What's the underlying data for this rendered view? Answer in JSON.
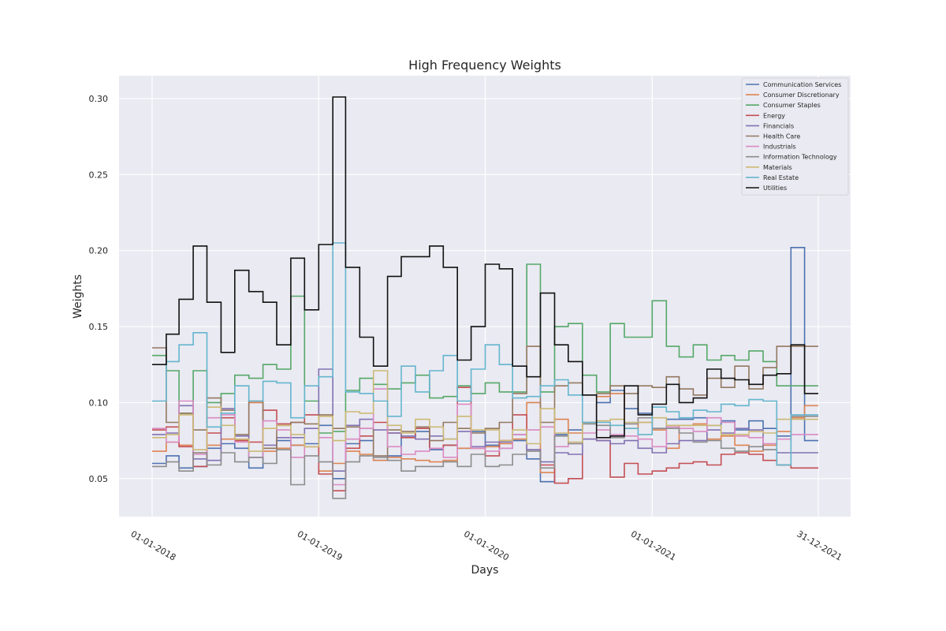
{
  "chart_data": {
    "type": "line",
    "step": true,
    "title": "High Frequency Weights",
    "xlabel": "Days",
    "ylabel": "Weights",
    "x_ticks": [
      "01-01-2018",
      "01-01-2019",
      "01-01-2020",
      "01-01-2021",
      "31-12-2021"
    ],
    "x_range": [
      "2018-01-01",
      "2021-12-31"
    ],
    "ylim": [
      0.025,
      0.315
    ],
    "y_ticks": [
      0.05,
      0.1,
      0.15,
      0.2,
      0.25,
      0.3
    ],
    "y_tick_labels": [
      "0.05",
      "0.10",
      "0.15",
      "0.20",
      "0.25",
      "0.30"
    ],
    "grid": true,
    "legend_position": "top-right",
    "x": [
      "2018-01-01",
      "2018-02-01",
      "2018-03-01",
      "2018-04-01",
      "2018-05-01",
      "2018-06-01",
      "2018-07-01",
      "2018-08-01",
      "2018-09-01",
      "2018-10-01",
      "2018-11-01",
      "2018-12-01",
      "2019-01-01",
      "2019-02-01",
      "2019-03-01",
      "2019-04-01",
      "2019-05-01",
      "2019-06-01",
      "2019-07-01",
      "2019-08-01",
      "2019-09-01",
      "2019-10-01",
      "2019-11-01",
      "2019-12-01",
      "2020-01-01",
      "2020-02-01",
      "2020-03-01",
      "2020-04-01",
      "2020-05-01",
      "2020-06-01",
      "2020-07-01",
      "2020-08-01",
      "2020-09-01",
      "2020-10-01",
      "2020-11-01",
      "2020-12-01",
      "2021-01-01",
      "2021-02-01",
      "2021-03-01",
      "2021-04-01",
      "2021-05-01",
      "2021-06-01",
      "2021-07-01",
      "2021-08-01",
      "2021-09-01",
      "2021-10-01",
      "2021-11-01",
      "2021-12-01",
      "2021-12-31"
    ],
    "series": [
      {
        "name": "Communication Services",
        "color": "#4c72b0",
        "values": [
          0.06,
          0.065,
          0.057,
          0.058,
          0.07,
          0.073,
          0.07,
          0.057,
          0.07,
          0.075,
          0.072,
          0.073,
          0.085,
          0.05,
          0.073,
          0.075,
          0.062,
          0.065,
          0.078,
          0.081,
          0.069,
          0.072,
          0.07,
          0.081,
          0.072,
          0.07,
          0.075,
          0.063,
          0.048,
          0.079,
          0.082,
          0.087,
          0.1,
          0.108,
          0.096,
          0.093,
          0.083,
          0.089,
          0.089,
          0.09,
          0.085,
          0.088,
          0.082,
          0.088,
          0.083,
          0.078,
          0.202,
          0.075,
          0.075
        ]
      },
      {
        "name": "Consumer Discretionary",
        "color": "#dd8452",
        "values": [
          0.068,
          0.074,
          0.072,
          0.067,
          0.072,
          0.076,
          0.075,
          0.1,
          0.068,
          0.07,
          0.072,
          0.071,
          0.055,
          0.06,
          0.068,
          0.066,
          0.062,
          0.064,
          0.063,
          0.062,
          0.061,
          0.062,
          0.07,
          0.07,
          0.071,
          0.073,
          0.076,
          0.1,
          0.054,
          0.089,
          0.08,
          0.087,
          0.104,
          0.106,
          0.083,
          0.087,
          0.082,
          0.07,
          0.085,
          0.086,
          0.076,
          0.078,
          0.072,
          0.068,
          0.072,
          0.081,
          0.09,
          0.098,
          0.098
        ]
      },
      {
        "name": "Consumer Staples",
        "color": "#55a868",
        "values": [
          0.131,
          0.121,
          0.093,
          0.121,
          0.1,
          0.106,
          0.118,
          0.116,
          0.125,
          0.122,
          0.17,
          0.101,
          0.08,
          0.081,
          0.108,
          0.116,
          0.112,
          0.109,
          0.113,
          0.118,
          0.103,
          0.104,
          0.111,
          0.106,
          0.113,
          0.107,
          0.107,
          0.191,
          0.107,
          0.15,
          0.152,
          0.118,
          0.107,
          0.152,
          0.143,
          0.143,
          0.167,
          0.137,
          0.13,
          0.138,
          0.128,
          0.131,
          0.128,
          0.134,
          0.127,
          0.111,
          0.111,
          0.111,
          0.111
        ]
      },
      {
        "name": "Energy",
        "color": "#c44e52",
        "values": [
          0.082,
          0.084,
          0.071,
          0.058,
          0.08,
          0.09,
          0.075,
          0.074,
          0.095,
          0.086,
          0.087,
          0.092,
          0.053,
          0.042,
          0.07,
          0.078,
          0.087,
          0.08,
          0.077,
          0.083,
          0.07,
          0.072,
          0.11,
          0.07,
          0.065,
          0.075,
          0.092,
          0.069,
          0.059,
          0.047,
          0.05,
          0.076,
          0.075,
          0.051,
          0.06,
          0.053,
          0.055,
          0.057,
          0.06,
          0.061,
          0.059,
          0.066,
          0.067,
          0.066,
          0.062,
          0.059,
          0.057,
          0.057,
          0.057
        ]
      },
      {
        "name": "Financials",
        "color": "#8172b3",
        "values": [
          0.079,
          0.08,
          0.098,
          0.063,
          0.062,
          0.096,
          0.078,
          0.064,
          0.072,
          0.077,
          0.077,
          0.083,
          0.122,
          0.055,
          0.085,
          0.089,
          0.082,
          0.08,
          0.078,
          0.076,
          0.078,
          0.076,
          0.081,
          0.071,
          0.074,
          0.074,
          0.079,
          0.069,
          0.061,
          0.067,
          0.066,
          0.076,
          0.075,
          0.073,
          0.075,
          0.07,
          0.067,
          0.073,
          0.075,
          0.075,
          0.082,
          0.08,
          0.083,
          0.082,
          0.069,
          0.067,
          0.067,
          0.067,
          0.067
        ]
      },
      {
        "name": "Health Care",
        "color": "#937860",
        "values": [
          0.136,
          0.087,
          0.093,
          0.082,
          0.103,
          0.095,
          0.079,
          0.101,
          0.07,
          0.085,
          0.087,
          0.086,
          0.092,
          0.083,
          0.084,
          0.083,
          0.065,
          0.082,
          0.081,
          0.084,
          0.075,
          0.087,
          0.083,
          0.08,
          0.083,
          0.087,
          0.106,
          0.137,
          0.087,
          0.111,
          0.113,
          0.105,
          0.106,
          0.111,
          0.106,
          0.111,
          0.11,
          0.117,
          0.109,
          0.105,
          0.116,
          0.11,
          0.124,
          0.109,
          0.123,
          0.137,
          0.137,
          0.137,
          0.137
        ]
      },
      {
        "name": "Industrials",
        "color": "#da8bc3",
        "values": [
          0.083,
          0.074,
          0.101,
          0.066,
          0.09,
          0.092,
          0.074,
          0.064,
          0.088,
          0.082,
          0.064,
          0.071,
          0.077,
          0.046,
          0.076,
          0.083,
          0.109,
          0.071,
          0.066,
          0.068,
          0.07,
          0.064,
          0.099,
          0.07,
          0.068,
          0.07,
          0.079,
          0.082,
          0.084,
          0.071,
          0.073,
          0.08,
          0.082,
          0.079,
          0.078,
          0.076,
          0.071,
          0.084,
          0.083,
          0.081,
          0.09,
          0.087,
          0.078,
          0.077,
          0.073,
          0.076,
          0.079,
          0.079,
          0.079
        ]
      },
      {
        "name": "Information Technology",
        "color": "#8c8c8c",
        "values": [
          0.058,
          0.061,
          0.055,
          0.067,
          0.059,
          0.067,
          0.061,
          0.064,
          0.06,
          0.069,
          0.046,
          0.065,
          0.061,
          0.037,
          0.061,
          0.065,
          0.064,
          0.062,
          0.055,
          0.058,
          0.058,
          0.061,
          0.058,
          0.066,
          0.058,
          0.059,
          0.066,
          0.068,
          0.057,
          0.078,
          0.073,
          0.086,
          0.085,
          0.077,
          0.086,
          0.09,
          0.083,
          0.083,
          0.08,
          0.074,
          0.075,
          0.07,
          0.068,
          0.071,
          0.069,
          0.059,
          0.091,
          0.091,
          0.091
        ]
      },
      {
        "name": "Materials",
        "color": "#ccb974",
        "values": [
          0.077,
          0.079,
          0.092,
          0.069,
          0.097,
          0.085,
          0.076,
          0.068,
          0.083,
          0.085,
          0.079,
          0.071,
          0.091,
          0.075,
          0.094,
          0.093,
          0.121,
          0.085,
          0.08,
          0.089,
          0.084,
          0.076,
          0.091,
          0.082,
          0.082,
          0.075,
          0.082,
          0.073,
          0.096,
          0.08,
          0.074,
          0.087,
          0.088,
          0.089,
          0.087,
          0.087,
          0.09,
          0.085,
          0.085,
          0.085,
          0.085,
          0.079,
          0.079,
          0.081,
          0.08,
          0.089,
          0.089,
          0.089,
          0.089
        ]
      },
      {
        "name": "Real Estate",
        "color": "#64b5cd",
        "values": [
          0.101,
          0.127,
          0.138,
          0.146,
          0.084,
          0.093,
          0.111,
          0.101,
          0.114,
          0.113,
          0.09,
          0.111,
          0.117,
          0.205,
          0.107,
          0.106,
          0.101,
          0.091,
          0.124,
          0.107,
          0.121,
          0.131,
          0.101,
          0.122,
          0.138,
          0.125,
          0.103,
          0.104,
          0.111,
          0.115,
          0.105,
          0.087,
          0.087,
          0.085,
          0.083,
          0.079,
          0.097,
          0.094,
          0.09,
          0.095,
          0.094,
          0.099,
          0.098,
          0.102,
          0.101,
          0.059,
          0.092,
          0.092,
          0.092
        ]
      },
      {
        "name": "Utilities",
        "color": "#111111",
        "values": [
          0.125,
          0.145,
          0.168,
          0.203,
          0.166,
          0.133,
          0.187,
          0.173,
          0.166,
          0.138,
          0.195,
          0.161,
          0.204,
          0.301,
          0.189,
          0.143,
          0.124,
          0.183,
          0.196,
          0.196,
          0.203,
          0.189,
          0.128,
          0.15,
          0.191,
          0.188,
          0.124,
          0.117,
          0.172,
          0.138,
          0.127,
          0.105,
          0.077,
          0.078,
          0.111,
          0.092,
          0.099,
          0.112,
          0.1,
          0.103,
          0.122,
          0.116,
          0.115,
          0.112,
          0.118,
          0.119,
          0.138,
          0.106,
          0.106
        ]
      }
    ]
  }
}
